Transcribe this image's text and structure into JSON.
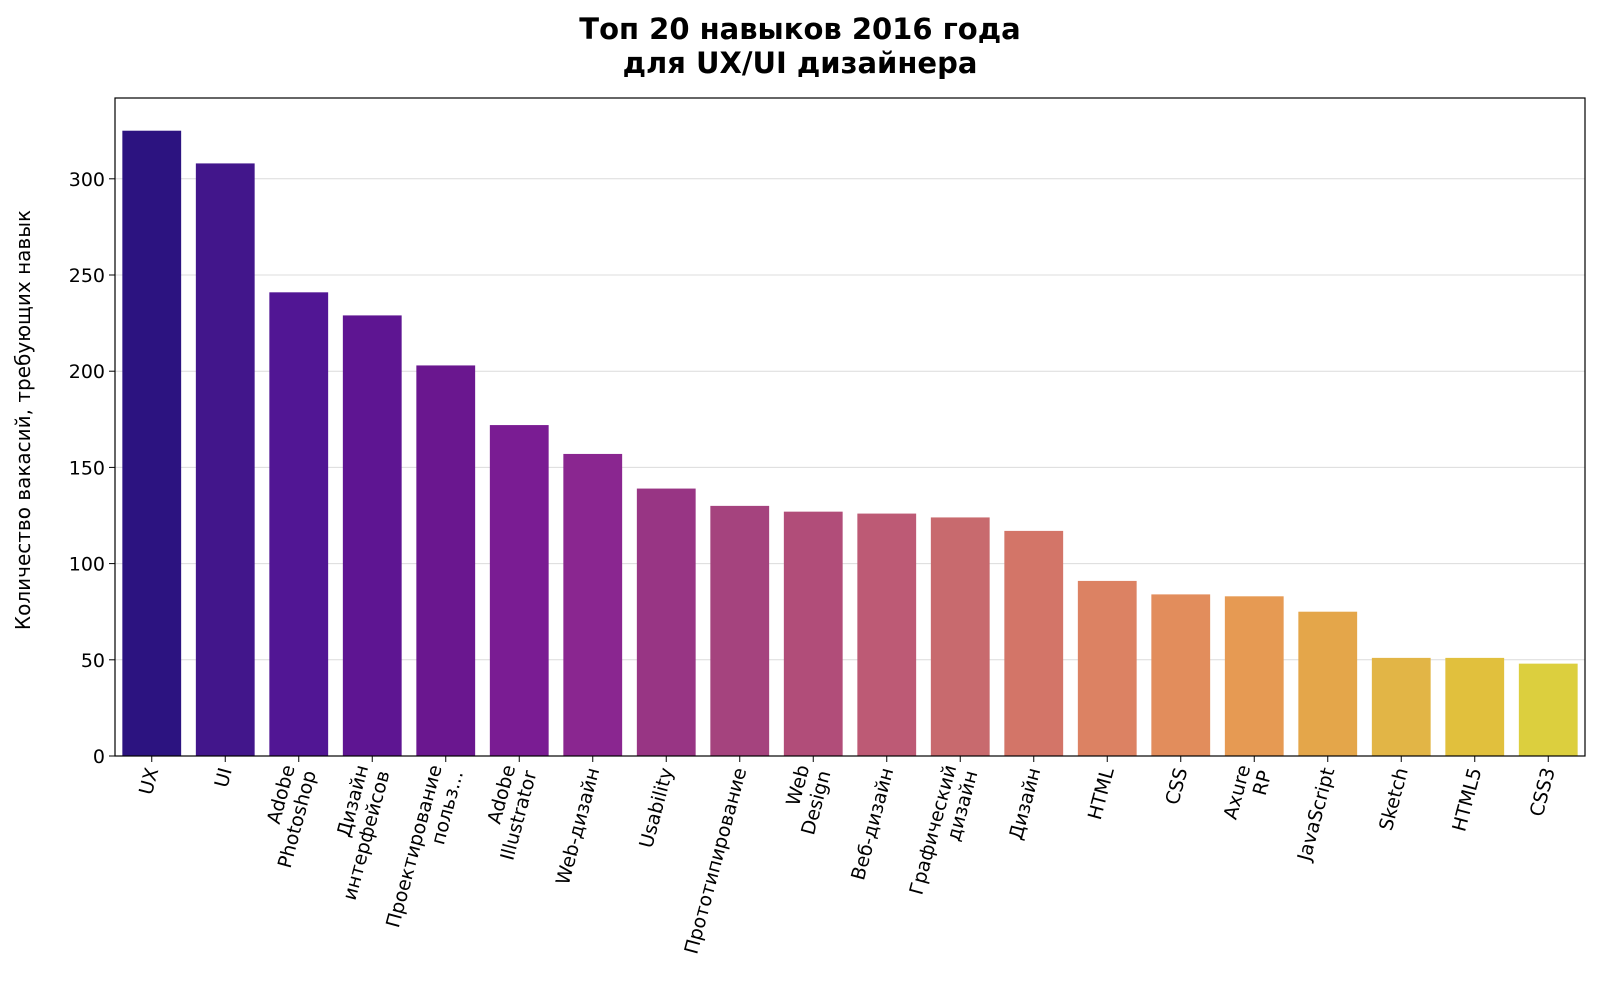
{
  "chart_data": {
    "type": "bar",
    "title_lines": [
      "Топ 20 навыков 2016 года",
      "для UX/UI дизайнера"
    ],
    "xlabel": "",
    "ylabel": "Количество вакасий, требующих навык",
    "ylim": [
      0,
      342
    ],
    "yticks": [
      "0",
      "50",
      "100",
      "150",
      "200",
      "250",
      "300"
    ],
    "grid": "y",
    "legend": "none",
    "categories": [
      "UX",
      "UI",
      "Adobe\nPhotoshop",
      "Дизайн\nинтерфейсов",
      "Проектирование\nпольз...",
      "Adobe\nIllustrator",
      "Web-дизайн",
      "Usability",
      "Прототипирование",
      "Web\nDesign",
      "Веб-дизайн",
      "Графический\nдизайн",
      "Дизайн",
      "HTML",
      "CSS",
      "Axure\nRP",
      "JavaScript",
      "Sketch",
      "HTML5",
      "CSS3"
    ],
    "values": [
      325,
      308,
      241,
      229,
      203,
      172,
      157,
      139,
      130,
      127,
      126,
      124,
      117,
      91,
      84,
      83,
      75,
      51,
      51,
      48
    ],
    "colors": [
      "#2c1380",
      "#42168b",
      "#511694",
      "#5e1592",
      "#6a178f",
      "#7a1c93",
      "#8a2690",
      "#983584",
      "#a5437e",
      "#b14d79",
      "#bd5a75",
      "#c86a6e",
      "#d37568",
      "#dc8263",
      "#e28d5c",
      "#e69a53",
      "#e4a64a",
      "#e2b546",
      "#e1c03d",
      "#dccf3e"
    ]
  }
}
